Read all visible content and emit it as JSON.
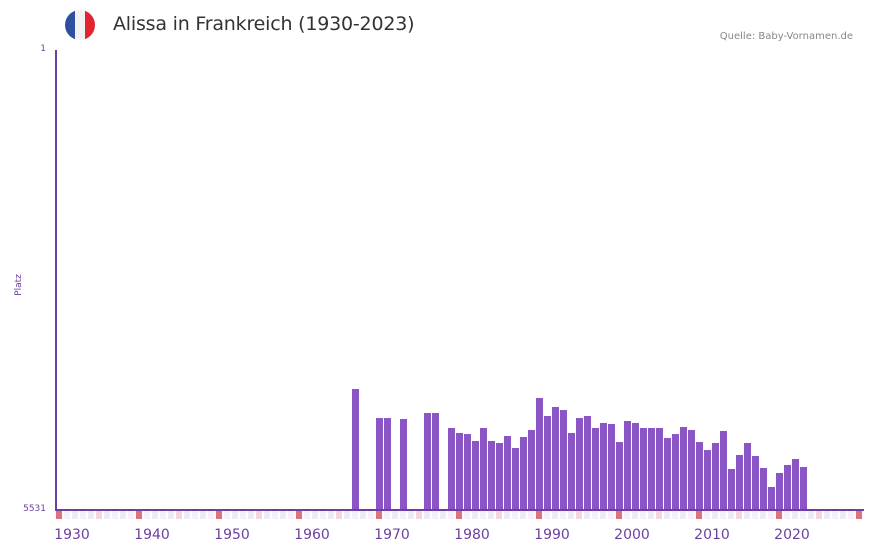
{
  "header": {
    "title": "Alissa in Frankreich (1930-2023)",
    "source": "Quelle: Baby-Vornamen.de",
    "flag_colors": [
      "#2f4f9e",
      "#f2f2f4",
      "#e2242f"
    ]
  },
  "chart_data": {
    "type": "bar",
    "title": "Alissa in Frankreich (1930-2023)",
    "xlabel": "",
    "ylabel": "Platz",
    "y_axis_inverted": true,
    "ylim": [
      5531,
      1
    ],
    "y_ticks": [
      "1",
      "5531"
    ],
    "x_ticks": [
      "1930",
      "1940",
      "1950",
      "1960",
      "1970",
      "1980",
      "1990",
      "2000",
      "2010",
      "2020"
    ],
    "x_range": [
      1928,
      2028
    ],
    "grid": true,
    "legend": null,
    "shaded_future_from": 2022,
    "categories": [
      1965,
      1968,
      1969,
      1971,
      1974,
      1975,
      1977,
      1978,
      1979,
      1980,
      1981,
      1982,
      1983,
      1984,
      1985,
      1986,
      1987,
      1988,
      1989,
      1990,
      1991,
      1992,
      1993,
      1994,
      1995,
      1996,
      1997,
      1998,
      1999,
      2000,
      2001,
      2002,
      2003,
      2004,
      2005,
      2006,
      2007,
      2008,
      2009,
      2010,
      2011,
      2012,
      2013,
      2014,
      2015,
      2016,
      2017,
      2018,
      2019,
      2020,
      2021
    ],
    "values": [
      4080,
      4430,
      4420,
      4440,
      4360,
      4370,
      4550,
      4600,
      4620,
      4700,
      4540,
      4700,
      4720,
      4640,
      4790,
      4650,
      4570,
      4180,
      4400,
      4290,
      4330,
      4600,
      4430,
      4400,
      4540,
      4490,
      4500,
      4710,
      4460,
      4480,
      4550,
      4550,
      4540,
      4670,
      4620,
      4530,
      4570,
      4710,
      4810,
      4720,
      4580,
      5040,
      4870,
      4720,
      4880,
      5020,
      5260,
      5090,
      4990,
      4920,
      5010
    ]
  },
  "colors": {
    "bar": "#8a56c6",
    "axis": "#6b3fa0",
    "decade_marker": "#e07080",
    "half_decade_marker": "#f5d5de",
    "future_shade": "#e2dceb"
  }
}
